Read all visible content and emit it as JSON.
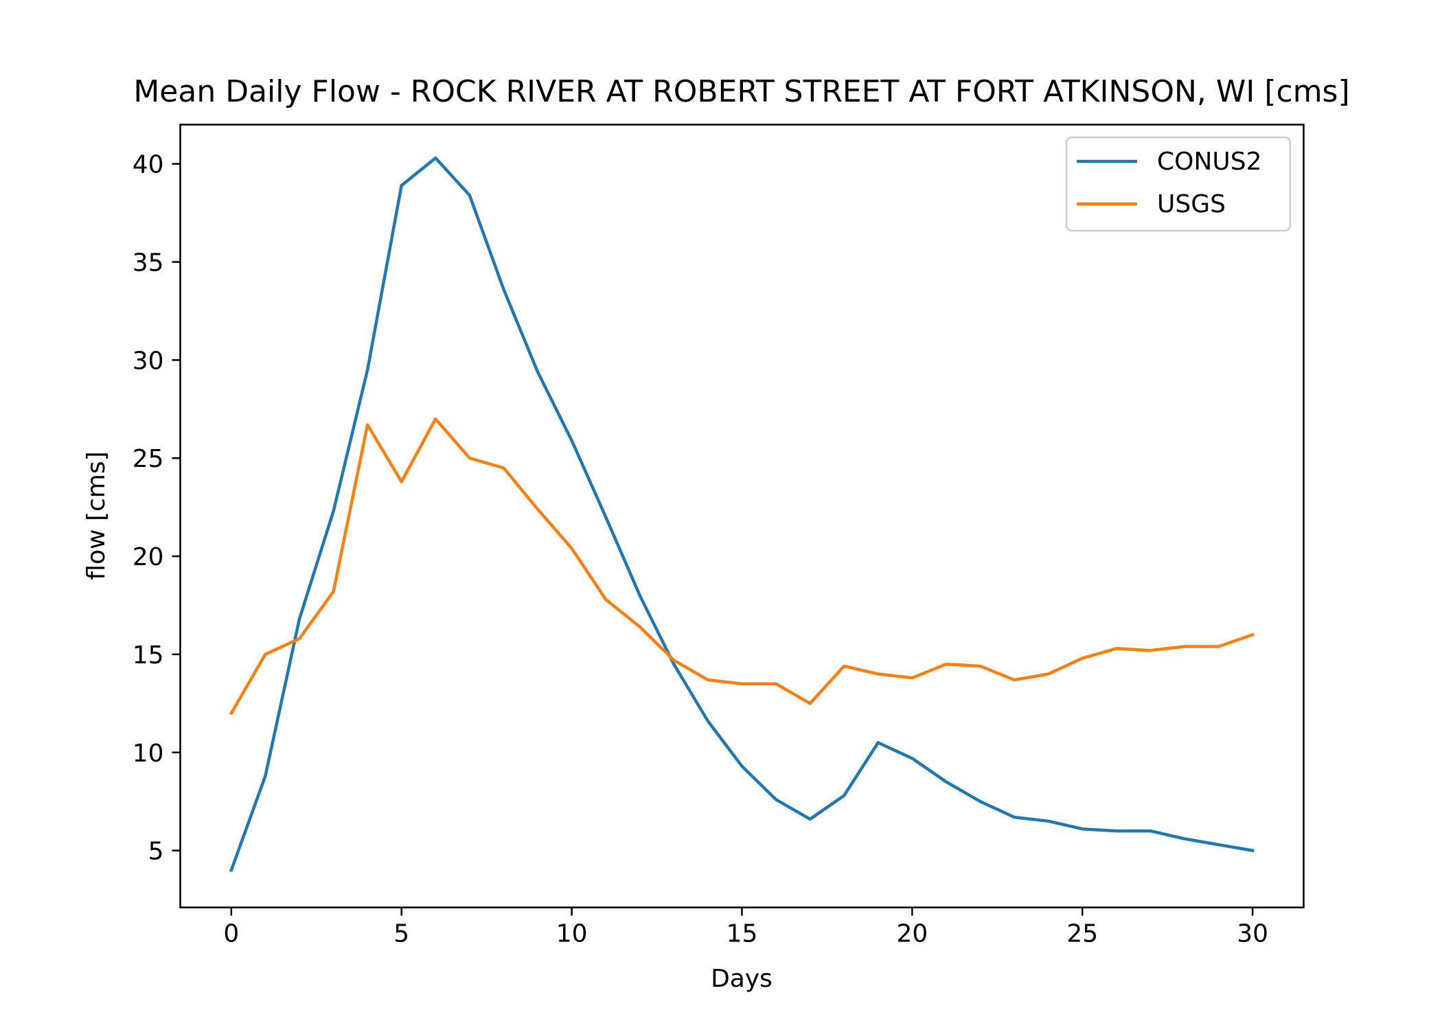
{
  "chart_data": {
    "type": "line",
    "title": "Mean Daily Flow - ROCK RIVER AT ROBERT STREET AT FORT ATKINSON, WI [cms]",
    "xlabel": "Days",
    "ylabel": "flow [cms]",
    "xlim": [
      -1.5,
      31.5
    ],
    "ylim": [
      2.1,
      42.0
    ],
    "xticks": [
      0,
      5,
      10,
      15,
      20,
      25,
      30
    ],
    "yticks": [
      5,
      10,
      15,
      20,
      25,
      30,
      35,
      40
    ],
    "grid": false,
    "legend_position": "top-right",
    "x": [
      0,
      1,
      2,
      3,
      4,
      5,
      6,
      7,
      8,
      9,
      10,
      11,
      12,
      13,
      14,
      15,
      16,
      17,
      18,
      19,
      20,
      21,
      22,
      23,
      24,
      25,
      26,
      27,
      28,
      29,
      30
    ],
    "series": [
      {
        "name": "CONUS2",
        "color": "#1f77b4",
        "values": [
          4.0,
          8.8,
          16.8,
          22.3,
          29.5,
          38.9,
          40.3,
          38.4,
          33.6,
          29.4,
          25.9,
          22.0,
          18.0,
          14.5,
          11.6,
          9.3,
          7.6,
          6.6,
          7.8,
          10.5,
          9.7,
          8.5,
          7.5,
          6.7,
          6.5,
          6.1,
          6.0,
          6.0,
          5.6,
          5.3,
          5.0
        ]
      },
      {
        "name": "USGS",
        "color": "#ff7f0e",
        "values": [
          12.0,
          15.0,
          15.8,
          18.2,
          26.7,
          23.8,
          27.0,
          25.0,
          24.5,
          22.4,
          20.4,
          17.8,
          16.4,
          14.7,
          13.7,
          13.5,
          13.5,
          12.5,
          14.4,
          14.0,
          13.8,
          14.5,
          14.4,
          13.7,
          14.0,
          14.8,
          15.3,
          15.2,
          15.4,
          15.4,
          16.0
        ]
      }
    ]
  }
}
